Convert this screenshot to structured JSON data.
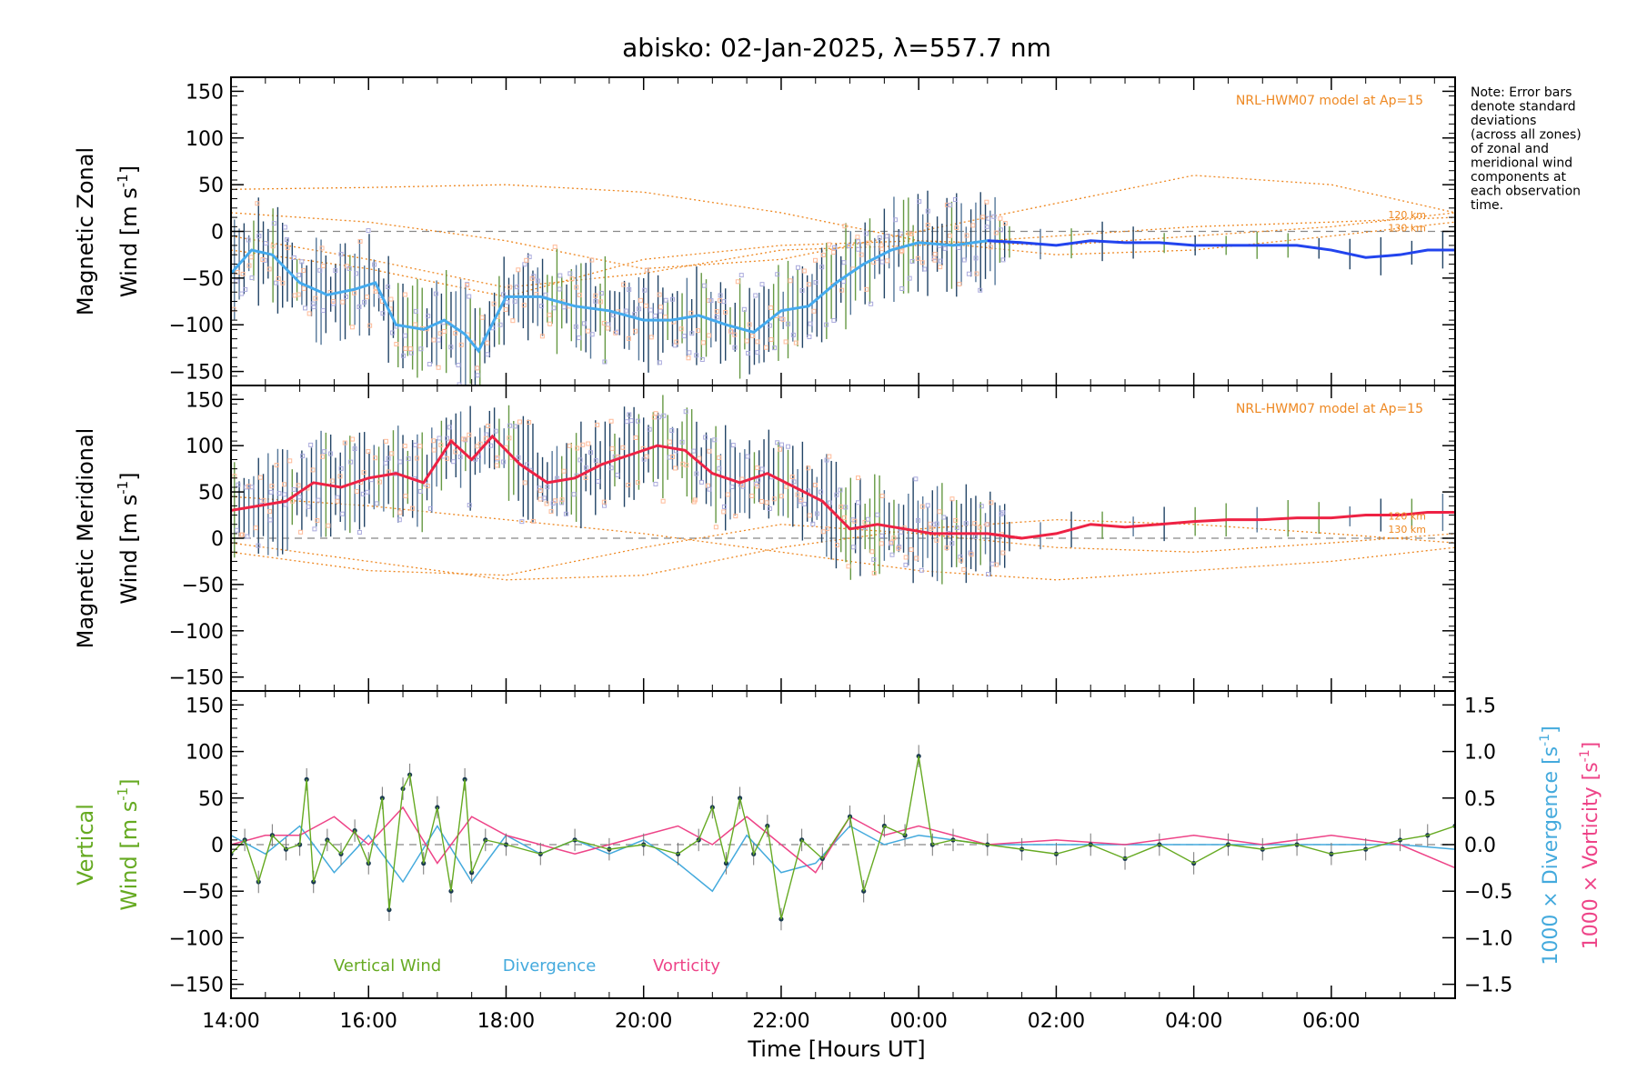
{
  "title": "abisko: 02-Jan-2025, λ=557.7 nm",
  "xlabel": "Time [Hours UT]",
  "note": [
    "Note: Error bars",
    "denote standard",
    "deviations",
    "(across all zones)",
    "of zonal and",
    "meridional wind",
    "components at",
    "each observation",
    "time."
  ],
  "colors": {
    "zonal_mean": "#2244ee",
    "zonal_light": "#44aaee",
    "meridional_mean": "#ee2244",
    "model": "#ee8822",
    "vertical": "#66aa22",
    "divergence": "#44aadd",
    "vorticity": "#ee4488",
    "scatter_purple": "#aaaadd",
    "scatter_peach": "#ffbb99",
    "errorbar": "#224466"
  },
  "chart_data": [
    {
      "type": "line",
      "panel": "zonal",
      "ylabel_line1": "Magnetic Zonal",
      "ylabel_line2": "Wind [m s",
      "ylabel_sup": "-1",
      "ylabel_end": "]",
      "model_label": "NRL-HWM07 model at Ap=15",
      "height_labels": [
        "120 km",
        "130 km"
      ],
      "xlim": [
        14,
        31.8
      ],
      "ylim": [
        -165,
        165
      ],
      "yticks": [
        -150,
        -100,
        -50,
        0,
        50,
        100,
        150
      ],
      "xticks": [
        14,
        16,
        18,
        20,
        22,
        24,
        26,
        28,
        30
      ],
      "xticklabels": [
        "14:00",
        "16:00",
        "18:00",
        "20:00",
        "22:00",
        "00:00",
        "02:00",
        "04:00",
        "06:00"
      ],
      "series": [
        {
          "x": [
            14,
            14.3,
            14.6,
            15,
            15.4,
            15.8,
            16.1,
            16.4,
            16.8,
            17.1,
            17.4,
            17.6,
            18,
            18.5,
            19,
            19.5,
            20,
            20.4,
            20.8,
            21.2,
            21.6,
            22,
            22.4,
            22.8,
            23.2,
            23.6,
            24,
            24.5,
            25,
            25.5,
            26,
            26.5,
            27,
            27.5,
            28,
            28.5,
            29,
            29.5,
            30,
            30.5,
            31,
            31.4,
            31.8
          ],
          "y": [
            -45,
            -20,
            -25,
            -55,
            -68,
            -62,
            -55,
            -100,
            -105,
            -95,
            -110,
            -128,
            -70,
            -70,
            -80,
            -85,
            -95,
            -95,
            -90,
            -100,
            -108,
            -85,
            -80,
            -55,
            -35,
            -20,
            -12,
            -15,
            -10,
            -12,
            -15,
            -10,
            -12,
            -12,
            -15,
            -15,
            -15,
            -15,
            -20,
            -28,
            -25,
            -20,
            -20
          ]
        }
      ],
      "model_lines": [
        {
          "x": [
            14,
            16,
            18,
            20,
            22,
            24,
            26,
            28,
            30,
            31.8
          ],
          "y": [
            45,
            47,
            50,
            42,
            20,
            -10,
            -25,
            -20,
            -5,
            10
          ]
        },
        {
          "x": [
            14,
            16,
            18,
            20,
            22,
            24,
            26,
            28,
            30,
            31.8
          ],
          "y": [
            20,
            10,
            -10,
            -40,
            -30,
            0,
            30,
            60,
            50,
            20
          ]
        },
        {
          "x": [
            14,
            16,
            18,
            20,
            22,
            24,
            26,
            28,
            30,
            31.8
          ],
          "y": [
            -5,
            -30,
            -60,
            -45,
            -20,
            -15,
            -5,
            5,
            10,
            15
          ]
        },
        {
          "x": [
            14,
            16,
            18,
            20,
            22,
            24,
            26,
            28,
            30,
            31.8
          ],
          "y": [
            -20,
            -40,
            -70,
            -30,
            -15,
            -10,
            -15,
            -5,
            5,
            20
          ]
        }
      ]
    },
    {
      "type": "line",
      "panel": "meridional",
      "ylabel_line1": "Magnetic Meridional",
      "ylabel_line2": "Wind [m s",
      "ylabel_sup": "-1",
      "ylabel_end": "]",
      "model_label": "NRL-HWM07 model at Ap=15",
      "height_labels": [
        "120 km",
        "130 km"
      ],
      "xlim": [
        14,
        31.8
      ],
      "ylim": [
        -165,
        165
      ],
      "yticks": [
        -150,
        -100,
        -50,
        0,
        50,
        100,
        150
      ],
      "series": [
        {
          "x": [
            14,
            14.4,
            14.8,
            15.2,
            15.6,
            16,
            16.4,
            16.8,
            17.2,
            17.5,
            17.8,
            18.2,
            18.6,
            19,
            19.4,
            19.8,
            20.2,
            20.6,
            21,
            21.4,
            21.8,
            22.2,
            22.6,
            23,
            23.4,
            23.8,
            24.2,
            24.6,
            25,
            25.5,
            26,
            26.5,
            27,
            27.5,
            28,
            28.5,
            29,
            29.5,
            30,
            30.5,
            31,
            31.4,
            31.8
          ],
          "y": [
            30,
            35,
            40,
            60,
            55,
            65,
            70,
            60,
            105,
            85,
            110,
            80,
            60,
            65,
            80,
            90,
            100,
            95,
            70,
            60,
            70,
            55,
            40,
            10,
            15,
            10,
            5,
            5,
            5,
            0,
            5,
            15,
            12,
            15,
            18,
            20,
            20,
            22,
            22,
            25,
            25,
            28,
            28
          ]
        }
      ],
      "model_lines": [
        {
          "x": [
            14,
            16,
            18,
            20,
            22,
            24,
            26,
            28,
            30,
            31.8
          ],
          "y": [
            45,
            35,
            20,
            5,
            -15,
            -35,
            -45,
            -35,
            -25,
            -10
          ]
        },
        {
          "x": [
            14,
            16,
            18,
            20,
            22,
            24,
            26,
            28,
            30,
            31.8
          ],
          "y": [
            -5,
            -25,
            -45,
            -40,
            -10,
            10,
            20,
            15,
            5,
            -5
          ]
        },
        {
          "x": [
            14,
            16,
            18,
            20,
            22,
            24,
            26,
            28,
            30,
            31.8
          ],
          "y": [
            -15,
            -35,
            -40,
            -10,
            15,
            5,
            -10,
            -15,
            -5,
            5
          ]
        }
      ]
    },
    {
      "type": "line",
      "panel": "vertical",
      "ylabel_line1": "Vertical",
      "ylabel_line2": "Wind [m s",
      "ylabel_sup": "-1",
      "ylabel_end": "]",
      "y2label_div": "1000 × Divergence [s",
      "y2label_vor": "1000 × Vorticity [s",
      "y2_sup": "-1",
      "xlim": [
        14,
        31.8
      ],
      "ylim": [
        -165,
        165
      ],
      "yticks": [
        -150,
        -100,
        -50,
        0,
        50,
        100,
        150
      ],
      "y2lim": [
        -1.65,
        1.65
      ],
      "y2ticks": [
        -1.5,
        -1.0,
        -0.5,
        0.0,
        0.5,
        1.0,
        1.5
      ],
      "y2ticklabels": [
        "−1.5",
        "−1.0",
        "−0.5",
        "0.0",
        "0.5",
        "1.0",
        "1.5"
      ],
      "legend": [
        "Vertical Wind",
        "Divergence",
        "Vorticity"
      ],
      "series": [
        {
          "name": "Vertical Wind",
          "x": [
            14,
            14.2,
            14.4,
            14.6,
            14.8,
            15,
            15.1,
            15.2,
            15.4,
            15.6,
            15.8,
            16,
            16.2,
            16.3,
            16.5,
            16.6,
            16.8,
            17,
            17.2,
            17.4,
            17.5,
            17.7,
            18,
            18.5,
            19,
            19.5,
            20,
            20.5,
            20.8,
            21,
            21.2,
            21.4,
            21.6,
            21.8,
            22,
            22.3,
            22.6,
            23,
            23.2,
            23.5,
            23.8,
            24,
            24.2,
            24.5,
            25,
            25.5,
            26,
            26.5,
            27,
            27.5,
            28,
            28.5,
            29,
            29.5,
            30,
            30.5,
            31,
            31.4,
            31.8
          ],
          "y": [
            -10,
            5,
            -40,
            10,
            -5,
            0,
            70,
            -40,
            5,
            -10,
            15,
            -20,
            50,
            -70,
            60,
            75,
            -20,
            40,
            -50,
            70,
            -30,
            5,
            0,
            -10,
            5,
            -5,
            0,
            -10,
            5,
            40,
            -20,
            50,
            -10,
            20,
            -80,
            5,
            -15,
            30,
            -50,
            20,
            10,
            95,
            0,
            5,
            0,
            -5,
            -10,
            0,
            -15,
            0,
            -20,
            0,
            -5,
            0,
            -10,
            -5,
            5,
            10,
            20
          ]
        },
        {
          "name": "Divergence",
          "x": [
            14,
            14.5,
            15,
            15.5,
            16,
            16.5,
            17,
            17.5,
            18,
            18.5,
            19,
            19.5,
            20,
            20.5,
            21,
            21.5,
            22,
            22.5,
            23,
            23.5,
            24,
            24.5,
            25,
            26,
            27,
            28,
            29,
            30,
            31,
            31.8
          ],
          "y": [
            0.1,
            -0.1,
            0.2,
            -0.3,
            0.1,
            -0.4,
            0.2,
            -0.4,
            0.1,
            -0.1,
            0.05,
            -0.1,
            0.05,
            -0.2,
            -0.5,
            0.1,
            -0.3,
            -0.2,
            0.2,
            0.0,
            0.1,
            0.05,
            0.0,
            0.0,
            0.0,
            0.0,
            0.0,
            0.0,
            0.0,
            -0.05
          ]
        },
        {
          "name": "Vorticity",
          "x": [
            14,
            14.5,
            15,
            15.5,
            16,
            16.5,
            17,
            17.5,
            18,
            18.5,
            19,
            19.5,
            20,
            20.5,
            21,
            21.5,
            22,
            22.5,
            23,
            23.5,
            24,
            24.5,
            25,
            26,
            27,
            28,
            29,
            30,
            31,
            31.8
          ],
          "y": [
            0.0,
            0.1,
            0.1,
            0.3,
            0.0,
            0.4,
            -0.2,
            0.3,
            0.1,
            0.0,
            -0.1,
            0.0,
            0.1,
            0.2,
            0.0,
            0.3,
            0.0,
            -0.3,
            0.3,
            0.1,
            0.2,
            0.1,
            0.0,
            0.05,
            0.0,
            0.1,
            0.0,
            0.1,
            0.0,
            -0.25
          ]
        }
      ]
    }
  ]
}
